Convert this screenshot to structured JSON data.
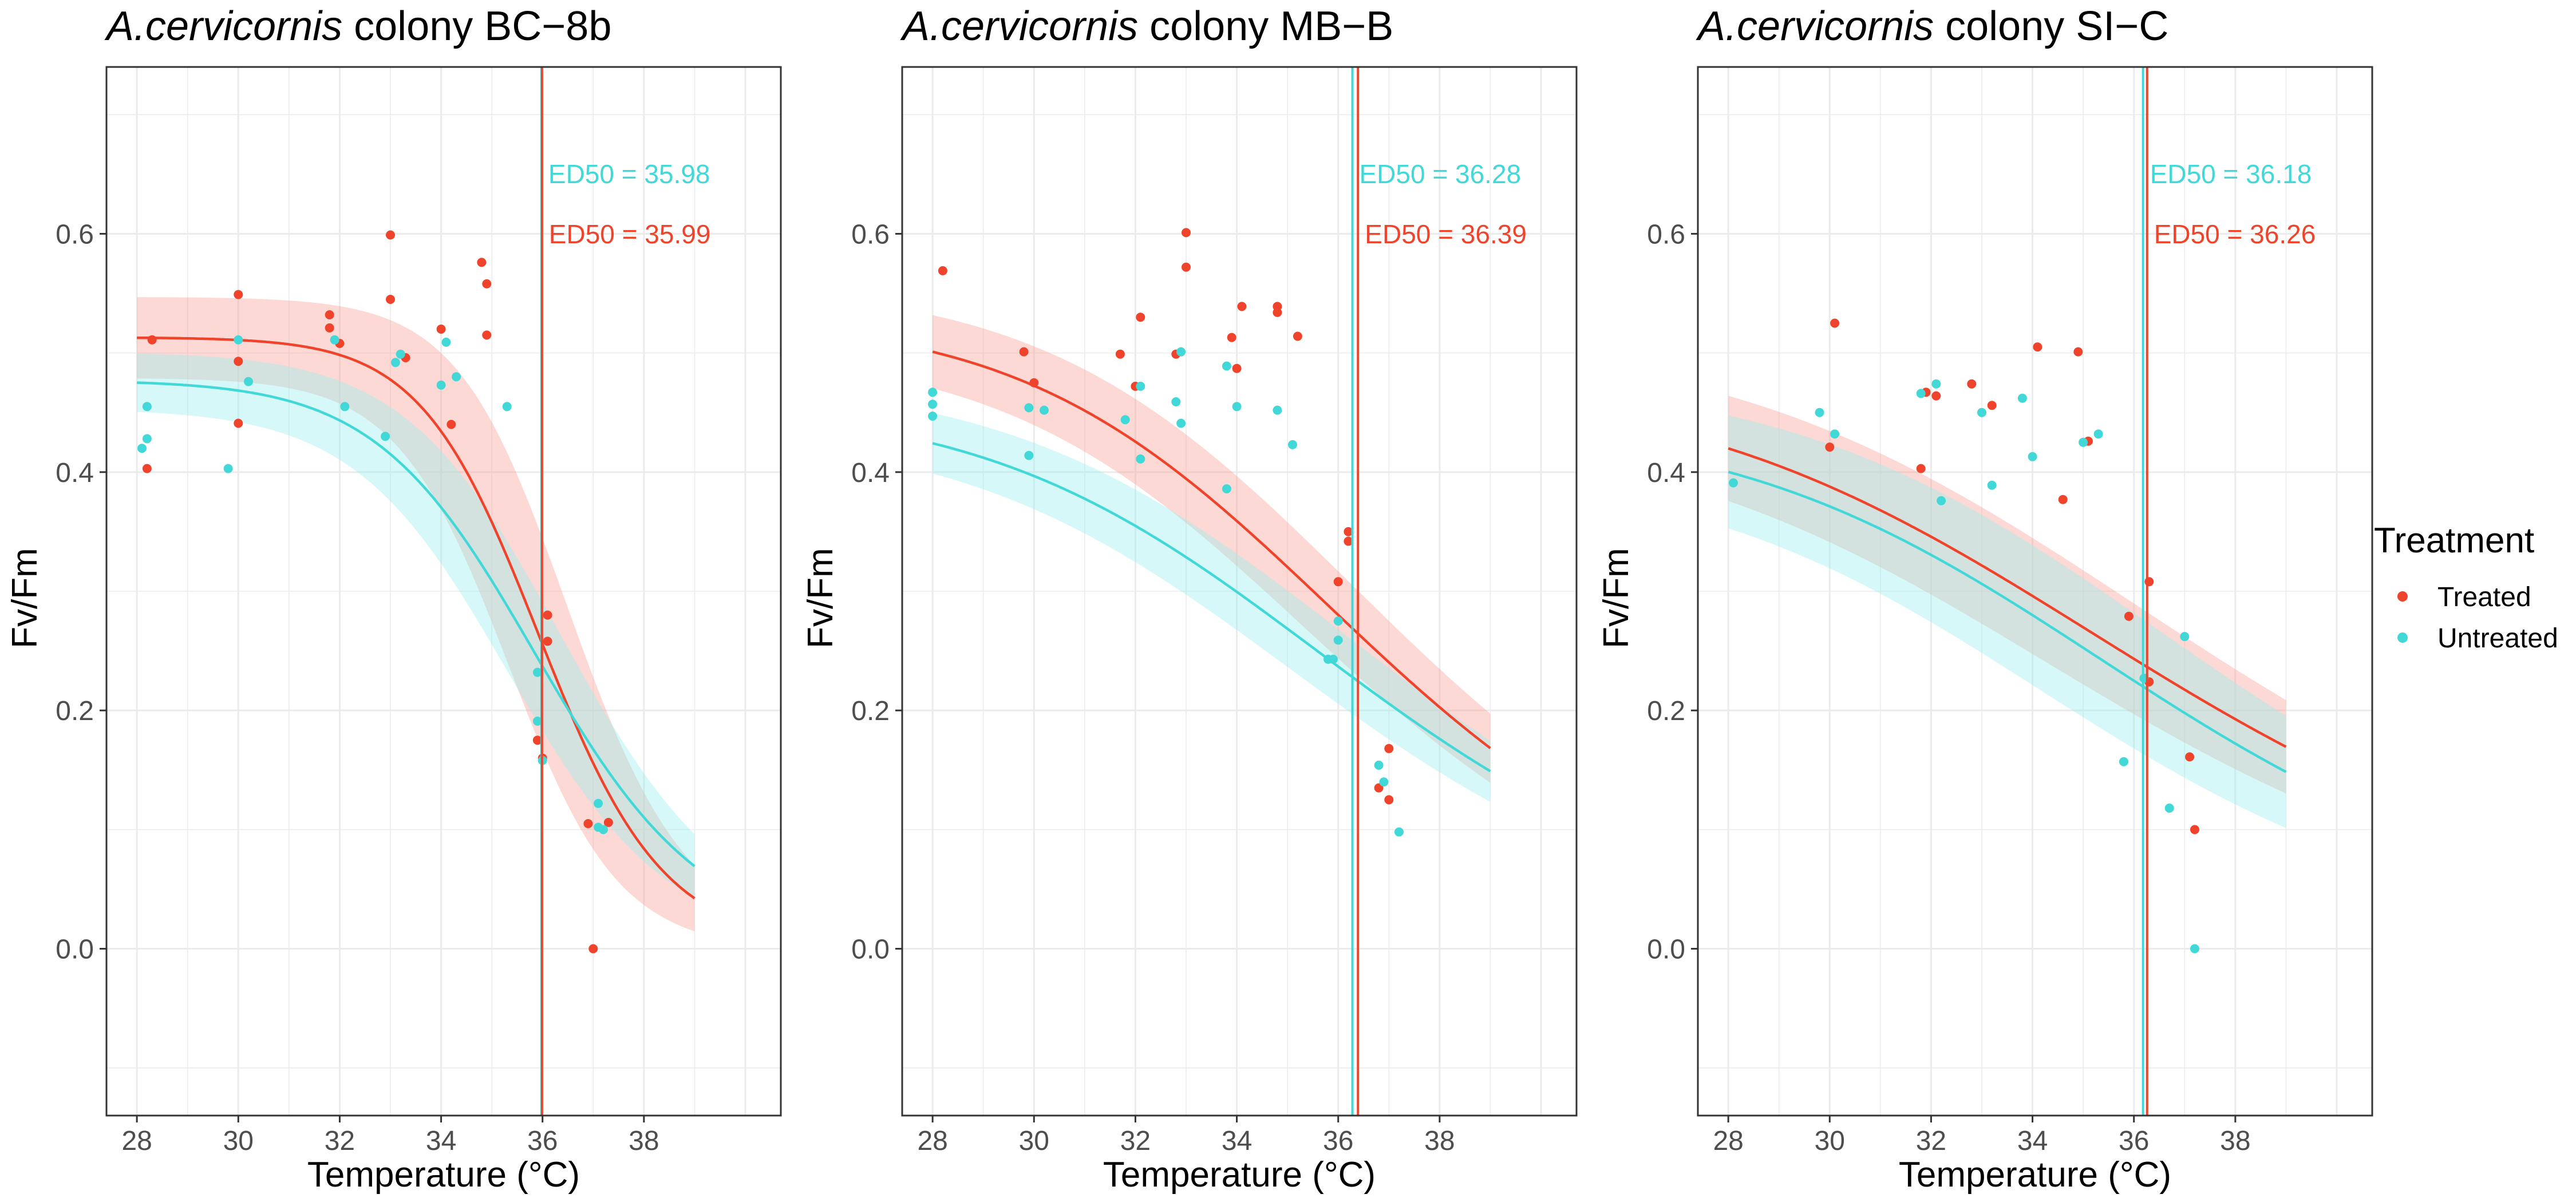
{
  "colors": {
    "treated": "#F0432B",
    "untreated": "#43D8D8",
    "treated_band": "#F8A59A",
    "untreated_band": "#9EEEEE",
    "grid": "#EBEBEB",
    "frame": "#333333"
  },
  "legend": {
    "title": "Treatment",
    "items": [
      {
        "label": "Treated",
        "color": "#F0432B"
      },
      {
        "label": "Untreated",
        "color": "#43D8D8"
      }
    ],
    "placement": "right"
  },
  "chart_data": [
    {
      "type": "scatter",
      "title_italic": "A.cervicornis",
      "title_rest": " colony BC−8b",
      "xlabel": "Temperature (°C)",
      "ylabel": "Fv/Fm",
      "xlim": [
        27.4,
        40.7
      ],
      "ylim": [
        -0.14,
        0.74
      ],
      "xticks": [
        "28",
        "30",
        "32",
        "34",
        "36",
        "38"
      ],
      "yticks": [
        "0.0",
        "0.2",
        "0.4",
        "0.6"
      ],
      "grid": true,
      "ed50_labels": [
        {
          "series": "Untreated",
          "text": "ED50 = 35.98"
        },
        {
          "series": "Treated",
          "text": "ED50 = 35.99"
        }
      ],
      "series": [
        {
          "name": "Treated",
          "ed50": 35.99,
          "upper": 0.513,
          "slope": 30,
          "x_end": 39,
          "band_upper_half": 0.03,
          "band_mid_half": 0.07,
          "points": [
            [
              28.2,
              0.403
            ],
            [
              28.3,
              0.511
            ],
            [
              30,
              0.549
            ],
            [
              30,
              0.493
            ],
            [
              30,
              0.441
            ],
            [
              31.8,
              0.532
            ],
            [
              31.8,
              0.521
            ],
            [
              32,
              0.508
            ],
            [
              33,
              0.599
            ],
            [
              33,
              0.545
            ],
            [
              33.3,
              0.496
            ],
            [
              34,
              0.52
            ],
            [
              34.2,
              0.44
            ],
            [
              34.8,
              0.576
            ],
            [
              34.9,
              0.558
            ],
            [
              34.9,
              0.515
            ],
            [
              36.1,
              0.28
            ],
            [
              36.1,
              0.258
            ],
            [
              35.9,
              0.175
            ],
            [
              36,
              0.16
            ],
            [
              36.9,
              0.105
            ],
            [
              37.3,
              0.106
            ],
            [
              37,
              0.0
            ]
          ]
        },
        {
          "name": "Untreated",
          "ed50": 35.98,
          "upper": 0.477,
          "slope": 22,
          "x_end": 39,
          "band_upper_half": 0.02,
          "band_mid_half": 0.04,
          "points": [
            [
              28.1,
              0.42
            ],
            [
              28.2,
              0.428
            ],
            [
              28.2,
              0.455
            ],
            [
              29.8,
              0.403
            ],
            [
              30,
              0.511
            ],
            [
              30.2,
              0.476
            ],
            [
              31.9,
              0.511
            ],
            [
              32.1,
              0.455
            ],
            [
              32.9,
              0.43
            ],
            [
              33.1,
              0.492
            ],
            [
              33.2,
              0.499
            ],
            [
              34,
              0.473
            ],
            [
              34.1,
              0.509
            ],
            [
              34.3,
              0.48
            ],
            [
              35.3,
              0.455
            ],
            [
              35.9,
              0.232
            ],
            [
              35.9,
              0.191
            ],
            [
              36,
              0.158
            ],
            [
              37.1,
              0.122
            ],
            [
              37.1,
              0.102
            ],
            [
              37.2,
              0.1
            ]
          ]
        }
      ]
    },
    {
      "type": "scatter",
      "title_italic": "A.cervicornis",
      "title_rest": " colony MB−B",
      "xlabel": "Temperature (°C)",
      "ylabel": "Fv/Fm",
      "xlim": [
        27.4,
        40.7
      ],
      "ylim": [
        -0.14,
        0.74
      ],
      "xticks": [
        "28",
        "30",
        "32",
        "34",
        "36",
        "38"
      ],
      "yticks": [
        "0.0",
        "0.2",
        "0.4",
        "0.6"
      ],
      "grid": true,
      "ed50_labels": [
        {
          "series": "Untreated",
          "text": "ED50 = 36.28"
        },
        {
          "series": "Treated",
          "text": "ED50 = 36.39"
        }
      ],
      "series": [
        {
          "name": "Treated",
          "ed50": 36.39,
          "upper": 0.529,
          "slope": 11,
          "x_end": 39,
          "band_upper_half": 0.024,
          "band_mid_half": 0.02,
          "points": [
            [
              28.2,
              0.569
            ],
            [
              29.8,
              0.501
            ],
            [
              30,
              0.475
            ],
            [
              31.7,
              0.499
            ],
            [
              32,
              0.472
            ],
            [
              32.1,
              0.53
            ],
            [
              32.8,
              0.499
            ],
            [
              33,
              0.601
            ],
            [
              33,
              0.572
            ],
            [
              33.9,
              0.513
            ],
            [
              34,
              0.487
            ],
            [
              34.1,
              0.539
            ],
            [
              34.8,
              0.539
            ],
            [
              34.8,
              0.534
            ],
            [
              35.2,
              0.514
            ],
            [
              36,
              0.308
            ],
            [
              36.2,
              0.35
            ],
            [
              36.2,
              0.342
            ],
            [
              36.8,
              0.135
            ],
            [
              37,
              0.168
            ],
            [
              37,
              0.125
            ]
          ]
        },
        {
          "name": "Untreated",
          "ed50": 36.28,
          "upper": 0.456,
          "slope": 10,
          "x_end": 39,
          "band_upper_half": 0.018,
          "band_mid_half": 0.018,
          "points": [
            [
              28,
              0.467
            ],
            [
              28,
              0.447
            ],
            [
              28,
              0.457
            ],
            [
              29.9,
              0.414
            ],
            [
              29.9,
              0.454
            ],
            [
              30.2,
              0.452
            ],
            [
              31.8,
              0.444
            ],
            [
              32.1,
              0.472
            ],
            [
              32.1,
              0.411
            ],
            [
              32.8,
              0.459
            ],
            [
              32.9,
              0.441
            ],
            [
              32.9,
              0.501
            ],
            [
              33.8,
              0.489
            ],
            [
              33.8,
              0.386
            ],
            [
              34,
              0.455
            ],
            [
              34.8,
              0.452
            ],
            [
              35.1,
              0.423
            ],
            [
              35.8,
              0.243
            ],
            [
              35.9,
              0.243
            ],
            [
              36,
              0.259
            ],
            [
              36,
              0.275
            ],
            [
              36.8,
              0.154
            ],
            [
              36.9,
              0.14
            ],
            [
              37.2,
              0.098
            ]
          ]
        }
      ]
    },
    {
      "type": "scatter",
      "title_italic": "A.cervicornis",
      "title_rest": " colony SI−C",
      "xlabel": "Temperature (°C)",
      "ylabel": "Fv/Fm",
      "xlim": [
        27.4,
        40.7
      ],
      "ylim": [
        -0.14,
        0.74
      ],
      "xticks": [
        "28",
        "30",
        "32",
        "34",
        "36",
        "38"
      ],
      "yticks": [
        "0.0",
        "0.2",
        "0.4",
        "0.6"
      ],
      "grid": true,
      "ed50_labels": [
        {
          "series": "Untreated",
          "text": "ED50 = 36.18"
        },
        {
          "series": "Treated",
          "text": "ED50 = 36.26"
        }
      ],
      "series": [
        {
          "name": "Treated",
          "ed50": 36.26,
          "upper": 0.473,
          "slope": 8,
          "x_end": 39,
          "band_upper_half": 0.034,
          "band_mid_half": 0.025,
          "points": [
            [
              30.1,
              0.525
            ],
            [
              30,
              0.421
            ],
            [
              31.8,
              0.403
            ],
            [
              31.9,
              0.467
            ],
            [
              32.1,
              0.464
            ],
            [
              32.8,
              0.474
            ],
            [
              33.2,
              0.456
            ],
            [
              34.1,
              0.505
            ],
            [
              34.9,
              0.501
            ],
            [
              34.6,
              0.377
            ],
            [
              35.1,
              0.426
            ],
            [
              35.9,
              0.279
            ],
            [
              36.3,
              0.308
            ],
            [
              36.3,
              0.224
            ],
            [
              37.1,
              0.161
            ],
            [
              37.2,
              0.1
            ]
          ]
        },
        {
          "name": "Untreated",
          "ed50": 36.18,
          "upper": 0.44,
          "slope": 9,
          "x_end": 39,
          "band_upper_half": 0.035,
          "band_mid_half": 0.035,
          "points": [
            [
              28.1,
              0.391
            ],
            [
              29.8,
              0.45
            ],
            [
              30.1,
              0.432
            ],
            [
              31.8,
              0.466
            ],
            [
              32.1,
              0.474
            ],
            [
              32.2,
              0.376
            ],
            [
              33,
              0.45
            ],
            [
              33.2,
              0.389
            ],
            [
              33.8,
              0.462
            ],
            [
              34,
              0.413
            ],
            [
              35,
              0.425
            ],
            [
              35.3,
              0.432
            ],
            [
              35.8,
              0.157
            ],
            [
              36.2,
              0.227
            ],
            [
              36.7,
              0.118
            ],
            [
              37,
              0.262
            ],
            [
              37.2,
              0.0
            ]
          ]
        }
      ]
    }
  ]
}
